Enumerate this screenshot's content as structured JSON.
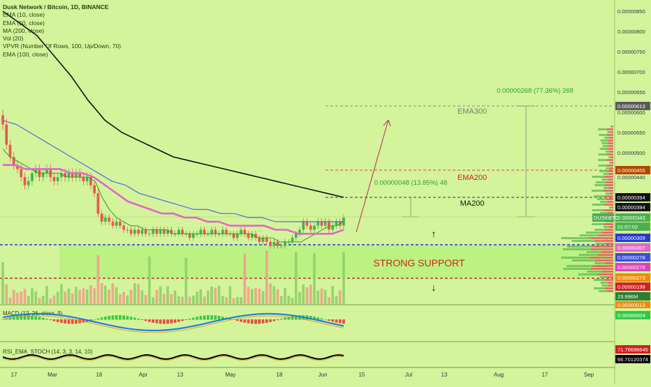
{
  "legend": {
    "title": "Dusk Network / Bitcoin, 1D, BINANCE",
    "lines": [
      "EMA (10, close)",
      "EMA (50, close)",
      "MA (200, close)",
      "Vol (20)",
      "VPVR (Number Of Rows, 100, Up/Down, 70)",
      "EMA (100, close)"
    ]
  },
  "indicators": {
    "macd_label": "MACD (12, 26, close, 9)",
    "stoch_label": "RSI_EMA_STOCH (14, 3, 3, 14, 10)"
  },
  "colors": {
    "background": "#d4f49c",
    "up_candle": "#4caf50",
    "down_candle": "#ef5350",
    "ema10": "#2e9b2e",
    "ema50": "#e066c8",
    "ema100": "#4a6ddc",
    "ma200": "#111111",
    "support_zone": "#b4f27a",
    "arrow": "#b04a6a"
  },
  "chart_data": {
    "type": "candlestick",
    "title": "Dusk Network / Bitcoin, 1D, BINANCE",
    "symbol": "DUSKBTC",
    "ylim": [
      1.9e-06,
      8.8e-06
    ],
    "x_tick_labels": [
      "17",
      "Mar",
      "16",
      "Apr",
      "13",
      "May",
      "18",
      "Jun",
      "15",
      "Jul",
      "13",
      "Aug",
      "17",
      "Sep"
    ],
    "y_tick_labels": [
      "0.00000850",
      "0.00000800",
      "0.00000750",
      "0.00000700",
      "0.00000650",
      "0.00000600",
      "0.00000550",
      "0.00000500",
      "0.00000440"
    ],
    "closes": [
      5.7e-06,
      5.2e-06,
      4.9e-06,
      4.7e-06,
      4.6e-06,
      4.4e-06,
      4.2e-06,
      4.3e-06,
      4.5e-06,
      4.6e-06,
      4.4e-06,
      4.5e-06,
      4.6e-06,
      4.4e-06,
      4.3e-06,
      4.4e-06,
      4.5e-06,
      4.4e-06,
      4.5e-06,
      4.4e-06,
      4.5e-06,
      4.4e-06,
      4.3e-06,
      4.4e-06,
      4.2e-06,
      4e-06,
      3.5e-06,
      3.3e-06,
      3.4e-06,
      3.3e-06,
      3.2e-06,
      3.3e-06,
      3.2e-06,
      3.1e-06,
      3.1e-06,
      3e-06,
      3.1e-06,
      3e-06,
      3.1e-06,
      3e-06,
      3e-06,
      3.1e-06,
      3e-06,
      3.1e-06,
      3e-06,
      3.1e-06,
      3e-06,
      3e-06,
      3.1e-06,
      3e-06,
      3e-06,
      2.9e-06,
      3e-06,
      3e-06,
      3.1e-06,
      3e-06,
      3e-06,
      3.1e-06,
      3e-06,
      3e-06,
      3.1e-06,
      3e-06,
      3e-06,
      2.9e-06,
      3e-06,
      3.1e-06,
      3e-06,
      2.9e-06,
      3e-06,
      2.9e-06,
      2.8e-06,
      2.9e-06,
      2.8e-06,
      2.7e-06,
      2.8e-06,
      2.7e-06,
      2.7e-06,
      2.8e-06,
      2.8e-06,
      2.9e-06,
      3e-06,
      3.1e-06,
      3.3e-06,
      3.2e-06,
      3.1e-06,
      3.2e-06,
      3.3e-06,
      3.2e-06,
      3.3e-06,
      3.1e-06,
      3.2e-06,
      3.3e-06,
      3.2e-06,
      3.4e-06
    ],
    "moving_averages": [
      {
        "name": "EMA (10, close)",
        "values": [
          5.1e-06,
          4.9e-06,
          4.8e-06,
          4.7e-06,
          4.6e-06,
          4.5e-06,
          4.5e-06,
          4.5e-06,
          4.5e-06,
          4.4e-06,
          4.4e-06,
          4.4e-06,
          4.4e-06,
          4.3e-06,
          3.9e-06,
          3.6e-06,
          3.4e-06,
          3.3e-06,
          3.2e-06,
          3.2e-06,
          3.1e-06,
          3.1e-06,
          3.1e-06,
          3.1e-06,
          3e-06,
          3e-06,
          3e-06,
          3e-06,
          3e-06,
          3e-06,
          3e-06,
          3e-06,
          3e-06,
          3e-06,
          3e-06,
          3e-06,
          2.9e-06,
          2.9e-06,
          2.9e-06,
          2.8e-06,
          2.8e-06,
          2.8e-06,
          2.8e-06,
          2.9e-06,
          3e-06,
          3.1e-06,
          3.2e-06,
          3.2e-06,
          3.3e-06
        ]
      },
      {
        "name": "EMA (50, close)",
        "values": [
          4.7e-06,
          4.7e-06,
          4.6e-06,
          4.6e-06,
          4.6e-06,
          4.6e-06,
          4.5e-06,
          4.5e-06,
          4.4e-06,
          4.2e-06,
          4e-06,
          3.8e-06,
          3.7e-06,
          3.6e-06,
          3.5e-06,
          3.5e-06,
          3.4e-06,
          3.4e-06,
          3.3e-06,
          3.3e-06,
          3.2e-06,
          3.2e-06,
          3.2e-06,
          3.2e-06,
          3.1e-06,
          3.1e-06,
          3e-06,
          3e-06,
          3e-06,
          3e-06,
          3.1e-06
        ]
      },
      {
        "name": "EMA (100, close)",
        "values": [
          5.8e-06,
          5.7e-06,
          5.5e-06,
          5.3e-06,
          5.1e-06,
          4.9e-06,
          4.7e-06,
          4.5e-06,
          4.3e-06,
          4.2e-06,
          4e-06,
          3.9e-06,
          3.8e-06,
          3.7e-06,
          3.6e-06,
          3.6e-06,
          3.5e-06,
          3.5e-06,
          3.4e-06,
          3.4e-06,
          3.3e-06,
          3.3e-06,
          3.3e-06,
          3.3e-06,
          3.3e-06,
          3.3e-06
        ]
      },
      {
        "name": "MA (200, close)",
        "values": [
          8.5e-06,
          8.2e-06,
          7.9e-06,
          7.4e-06,
          6.9e-06,
          6.3e-06,
          5.8e-06,
          5.5e-06,
          5.3e-06,
          5.1e-06,
          4.9e-06,
          4.8e-06,
          4.7e-06,
          4.6e-06,
          4.5e-06,
          4.4e-06,
          4.3e-06,
          4.2e-06,
          4.1e-06,
          4e-06,
          3.9e-06
        ]
      }
    ],
    "annotations": {
      "ema300_label": "EMA300",
      "ema200_label": "EMA200",
      "ma200_label": "MA200",
      "support_label": "STRONG SUPPORT",
      "measure_large": "0.00000268 (77.36%) 268",
      "measure_small": "0.00000048 (13.85%) 48"
    },
    "price_levels": [
      {
        "name": "ema300",
        "value": 6.13e-06,
        "style": "dashed",
        "color": "#888888"
      },
      {
        "name": "ema200",
        "value": 4.55e-06,
        "style": "dashed",
        "color": "#d04040"
      },
      {
        "name": "ma200",
        "value": 3.94e-06,
        "style": "dashed",
        "color": "#333333"
      },
      {
        "name": "support-top",
        "value": 3.09e-06,
        "style": "dashed",
        "color": "#2233cc"
      },
      {
        "name": "support-bottom",
        "value": 2.73e-06,
        "style": "dashed",
        "color": "#d02020"
      }
    ],
    "support_zone": [
      2.73e-06,
      3.09e-06
    ],
    "price_tags": [
      {
        "value": 6.13e-06,
        "label": "0.00000613",
        "bg": "#5a5a5a",
        "fg": "#ffffff"
      },
      {
        "value": 4.55e-06,
        "label": "0.00000455",
        "bg": "#b34700",
        "fg": "#ffffff"
      },
      {
        "value": 3.94e-06,
        "label": "0.00000394",
        "bg": "#111111",
        "fg": "#ffffff"
      },
      {
        "value": 3.94e-06,
        "label": "0.00000394",
        "bg": "#111111",
        "fg": "#ffffff",
        "row": 1
      },
      {
        "value": 3.43e-06,
        "label": "0.00000343",
        "bg": "#4caf50",
        "fg": "#ffffff"
      },
      {
        "value": 3.43e-06,
        "label": "01:07:02",
        "bg": "#4caf50",
        "fg": "#ffffff",
        "row": 1
      },
      {
        "value": 3.09e-06,
        "label": "0.00000309",
        "bg": "#2a3ad0",
        "fg": "#ffffff"
      },
      {
        "value": 3.07e-06,
        "label": "0.00000307",
        "bg": "#e066c8",
        "fg": "#ffffff",
        "row": 1
      },
      {
        "value": 2.78e-06,
        "label": "0.00000278",
        "bg": "#3a4ae0",
        "fg": "#ffffff"
      },
      {
        "value": 2.78e-06,
        "label": "0.00000278",
        "bg": "#e040c0",
        "fg": "#ffffff",
        "row": 1
      },
      {
        "value": 2.73e-06,
        "label": "0.00000273",
        "bg": "#f08c00",
        "fg": "#ffffff"
      },
      {
        "value": 1.98e-06,
        "label": "0.00000198",
        "bg": "#d02020",
        "fg": "#ffffff"
      },
      {
        "value": 0,
        "label": "23.996M",
        "bg": "#2e7d32",
        "fg": "#ffffff"
      }
    ],
    "symbol_tag": "DUSKBTC",
    "macd_tags": [
      "0.00000013",
      "0.00000004"
    ],
    "stoch_tags": [
      "71.76696645",
      "66.70120374"
    ]
  }
}
